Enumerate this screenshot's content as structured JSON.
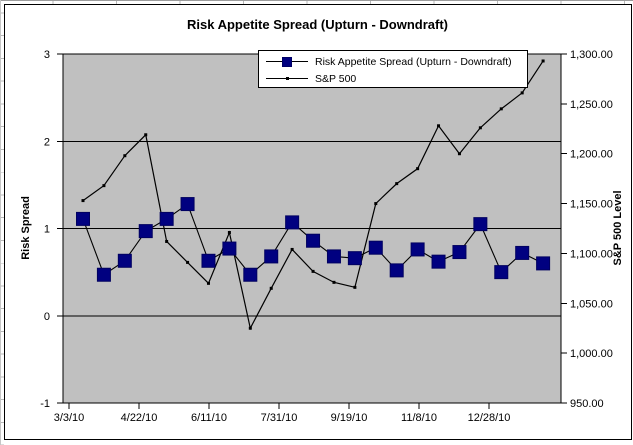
{
  "chart": {
    "title": "Risk Appetite Spread (Upturn - Downdraft)",
    "legend": [
      {
        "label": "Risk Appetite Spread (Upturn - Downdraft)",
        "marker": "navy-square-on-line",
        "color": "#000080"
      },
      {
        "label": "S&P 500",
        "marker": "black-line-with-dot",
        "color": "#000000"
      }
    ]
  },
  "chart_data": {
    "type": "line",
    "title": "Risk Appetite Spread (Upturn - Downdraft)",
    "plot_bg": "#C0C0C0",
    "grid_on": true,
    "legend_position": "top-center",
    "x_axis": {
      "tick_labels": [
        "3/3/10",
        "4/22/10",
        "6/11/10",
        "7/31/10",
        "9/19/10",
        "11/8/10",
        "12/28/10"
      ]
    },
    "x_dates_estimated": [
      "3/13/10",
      "3/28/10",
      "4/12/10",
      "4/27/10",
      "5/12/10",
      "5/27/10",
      "6/11/10",
      "6/26/10",
      "7/11/10",
      "7/26/10",
      "8/10/10",
      "8/25/10",
      "9/9/10",
      "9/24/10",
      "10/9/10",
      "10/24/10",
      "11/8/10",
      "11/23/10",
      "12/8/10",
      "12/23/10",
      "1/7/11",
      "1/22/11",
      "2/6/11"
    ],
    "y_left": {
      "label": "Risk Spread",
      "min": -1,
      "max": 3,
      "tick_labels": [
        "3",
        "2",
        "1",
        "0",
        "-1"
      ],
      "tick_values": [
        3,
        2,
        1,
        0,
        -1
      ],
      "grid_values": [
        2,
        1,
        0
      ]
    },
    "y_right": {
      "label": "S&P 500 Level",
      "min": 950,
      "max": 1300,
      "tick_labels": [
        "1,300.00",
        "1,250.00",
        "1,200.00",
        "1,150.00",
        "1,100.00",
        "1,050.00",
        "1,000.00",
        "950.00"
      ],
      "tick_values": [
        1300,
        1250,
        1200,
        1150,
        1100,
        1050,
        1000,
        950
      ]
    },
    "series": [
      {
        "name": "Risk Appetite Spread (Upturn - Downdraft)",
        "axis": "left",
        "line_color": "#000000",
        "marker": "square",
        "marker_color": "#000080",
        "values": [
          1.11,
          0.47,
          0.63,
          0.97,
          1.11,
          1.28,
          0.63,
          0.77,
          0.47,
          0.68,
          1.07,
          0.86,
          0.68,
          0.66,
          0.78,
          0.52,
          0.76,
          0.62,
          0.73,
          1.05,
          0.5,
          0.72,
          0.6
        ]
      },
      {
        "name": "S&P 500",
        "axis": "right",
        "line_color": "#000000",
        "marker": "dot",
        "marker_color": "#000000",
        "values": [
          1153,
          1168,
          1198,
          1219,
          1112,
          1091,
          1070,
          1121,
          1025,
          1065,
          1104,
          1082,
          1071,
          1066,
          1150,
          1170,
          1185,
          1228,
          1200,
          1226,
          1245,
          1261,
          1293
        ]
      }
    ]
  }
}
